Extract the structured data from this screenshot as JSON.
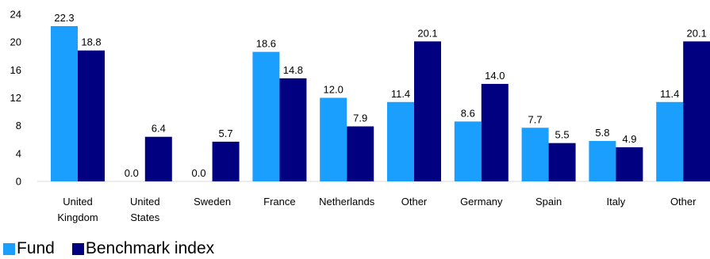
{
  "chart_data": {
    "type": "bar",
    "categories": [
      "United Kingdom",
      "United States",
      "Sweden",
      "France",
      "Netherlands",
      "Other",
      "Germany",
      "Spain",
      "Italy",
      "Other"
    ],
    "category_lines": [
      [
        "United",
        "Kingdom"
      ],
      [
        "United",
        "States"
      ],
      [
        "Sweden"
      ],
      [
        "France"
      ],
      [
        "Netherlands"
      ],
      [
        "Other"
      ],
      [
        "Germany"
      ],
      [
        "Spain"
      ],
      [
        "Italy"
      ],
      [
        "Other"
      ]
    ],
    "series": [
      {
        "name": "Fund",
        "color": "#1a9fff",
        "values": [
          22.3,
          0.0,
          0.0,
          18.6,
          12.0,
          11.4,
          8.6,
          7.7,
          5.8,
          11.4
        ]
      },
      {
        "name": "Benchmark index",
        "color": "#000080",
        "values": [
          18.8,
          6.4,
          5.7,
          14.8,
          7.9,
          20.1,
          14.0,
          5.5,
          4.9,
          20.1
        ]
      }
    ],
    "ylim": [
      0,
      24
    ],
    "yticks": [
      0,
      4,
      8,
      12,
      16,
      20,
      24
    ],
    "grid": false,
    "legend": "bottom-left",
    "xlabel": "",
    "ylabel": "",
    "title": ""
  }
}
